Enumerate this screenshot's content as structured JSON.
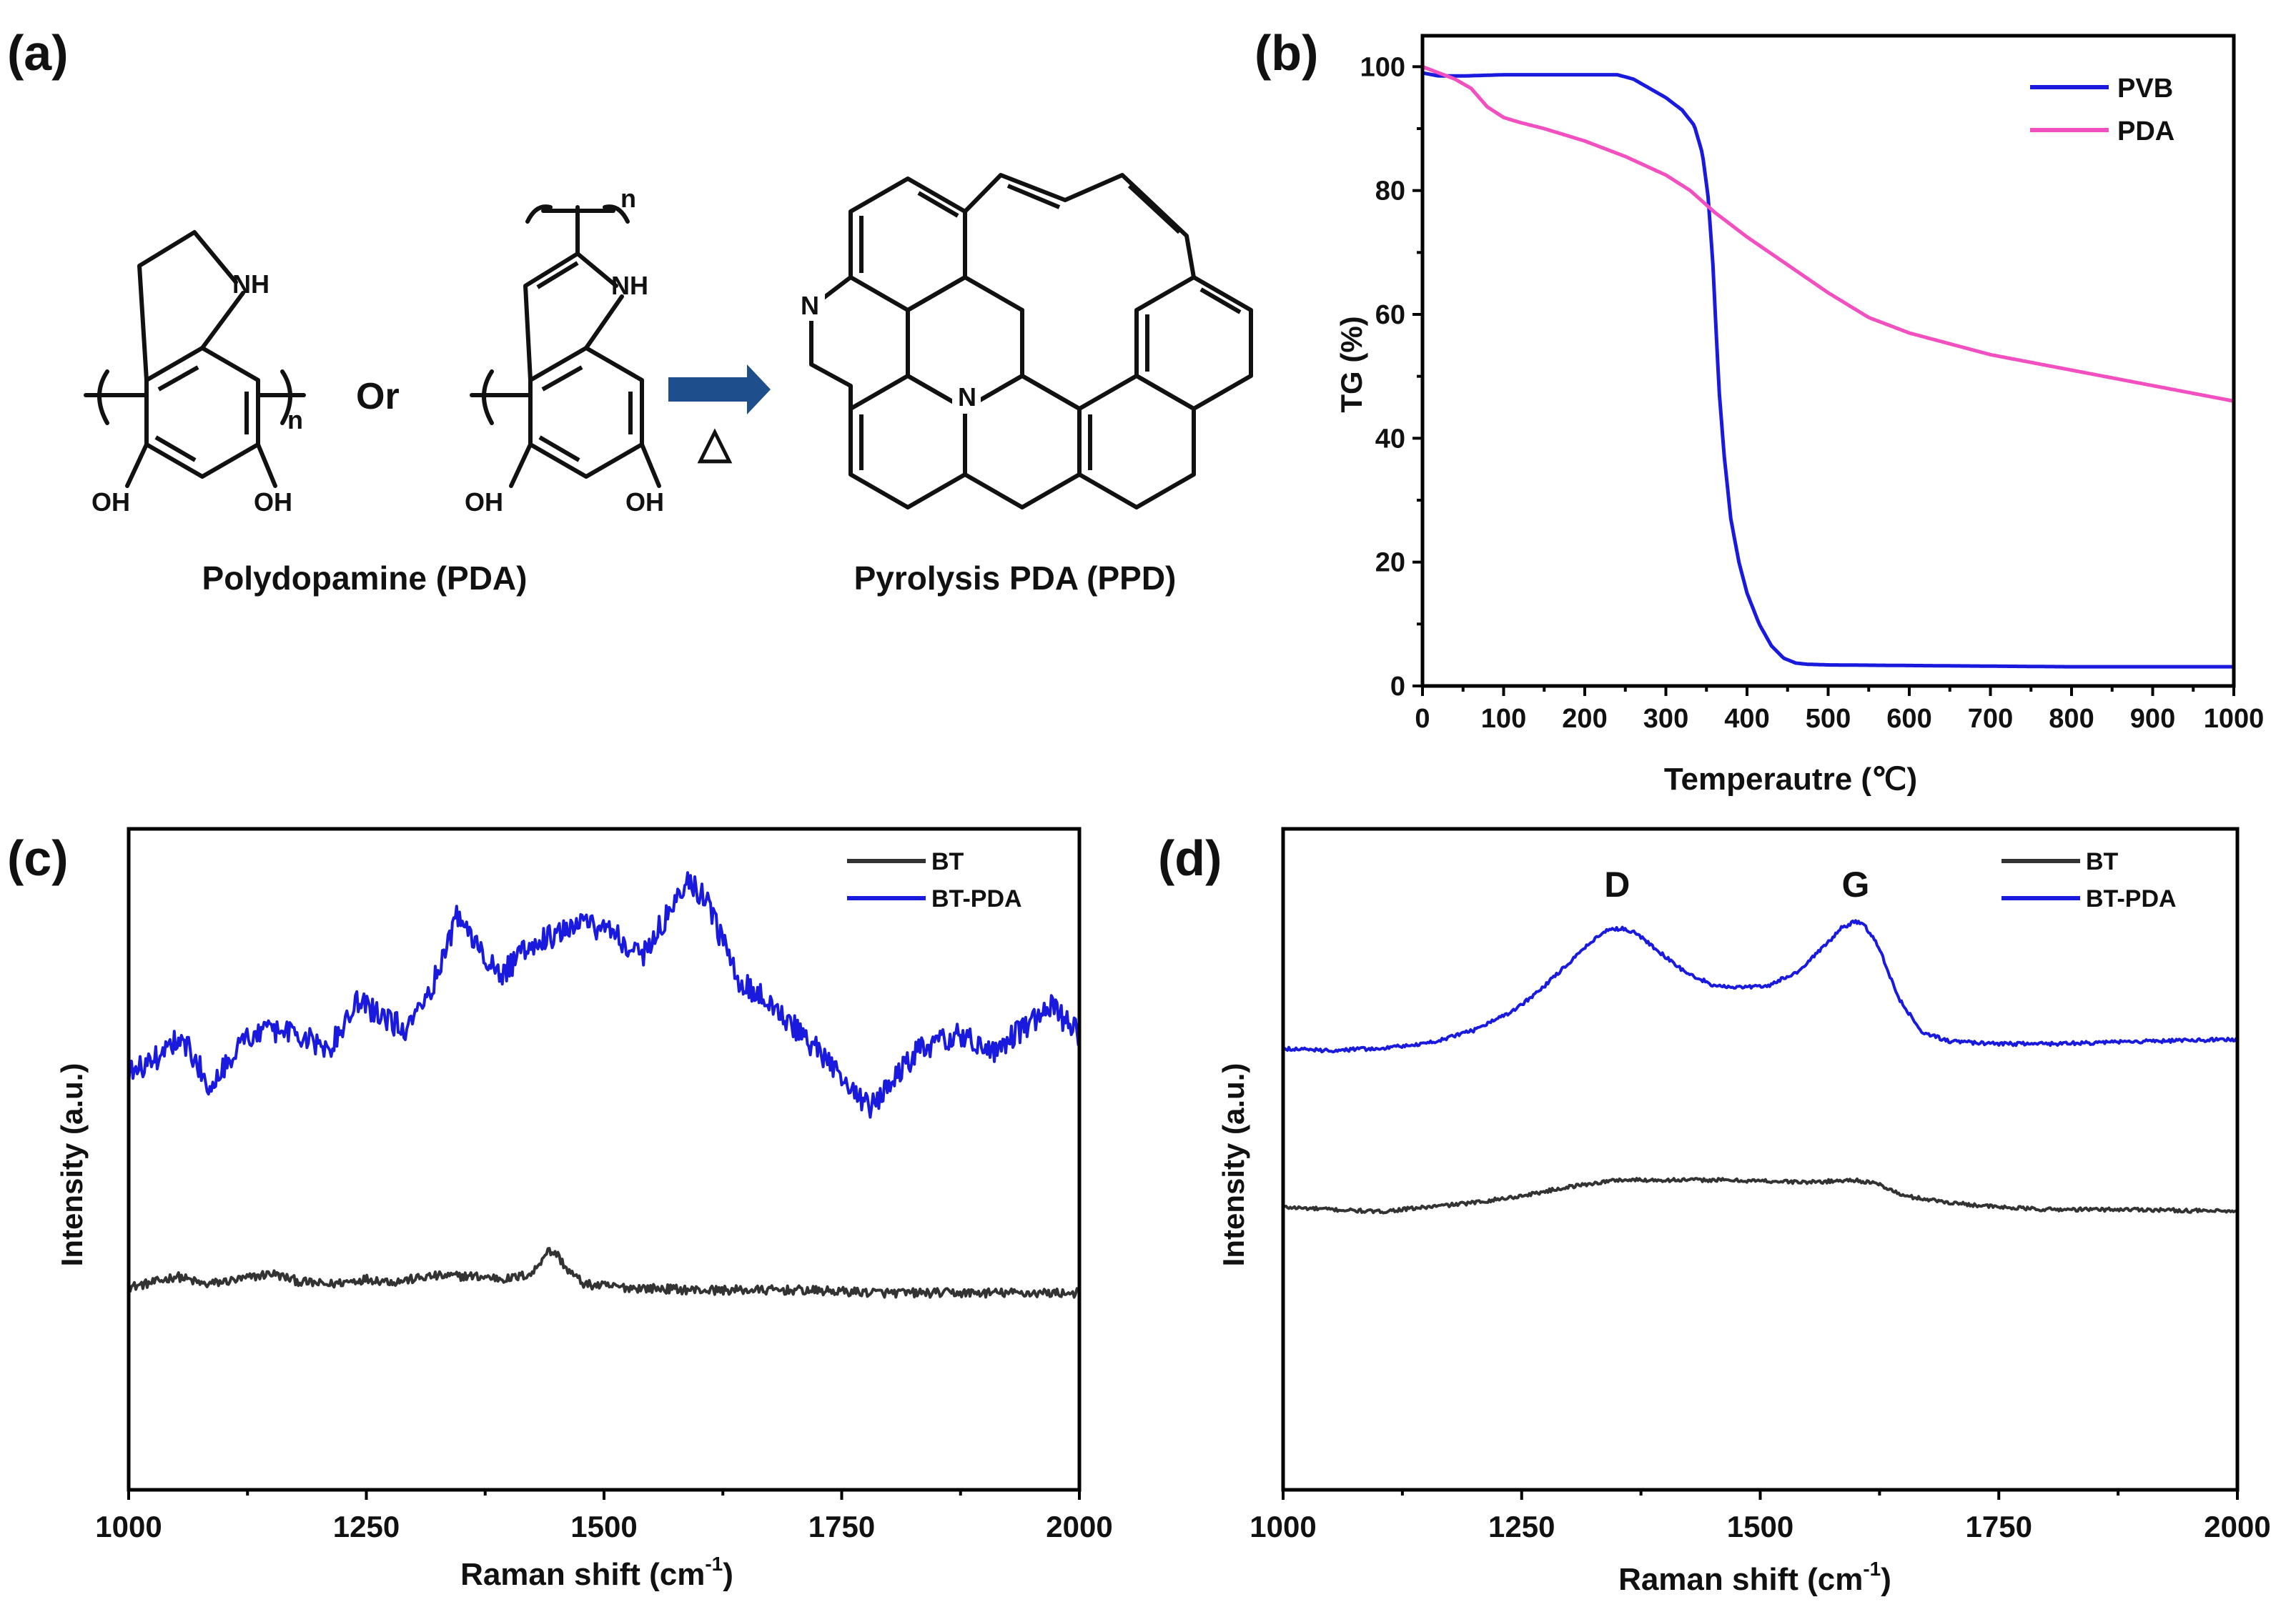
{
  "panel_labels": {
    "a": "(a)",
    "b": "(b)",
    "c": "(c)",
    "d": "(d)"
  },
  "scheme": {
    "pda_label": "Polydopamine (PDA)",
    "ppd_label": "Pyrolysis PDA (PPD)",
    "or_text": "Or",
    "heat_symbol": "△",
    "atoms": {
      "nh": "NH",
      "oh": "OH",
      "n": "N",
      "sub_n": "n"
    }
  },
  "chart_data": [
    {
      "id": "b",
      "type": "line",
      "xlabel": "Temperautre (℃)",
      "ylabel": "TG (%)",
      "xlim": [
        0,
        1000
      ],
      "ylim": [
        0,
        105
      ],
      "xticks": [
        "0",
        "100",
        "200",
        "300",
        "400",
        "500",
        "600",
        "700",
        "800",
        "900",
        "1000"
      ],
      "yticks": [
        "0",
        "20",
        "40",
        "60",
        "80",
        "100"
      ],
      "legend_position": "top-right",
      "series": [
        {
          "name": "PVB",
          "color": "#1a1adf",
          "x": [
            0,
            20,
            50,
            100,
            150,
            200,
            240,
            260,
            280,
            300,
            320,
            335,
            345,
            352,
            358,
            362,
            366,
            372,
            380,
            390,
            400,
            415,
            430,
            445,
            460,
            475,
            500,
            600,
            700,
            800,
            900,
            1000
          ],
          "y": [
            99,
            98.5,
            98.5,
            98.7,
            98.7,
            98.7,
            98.7,
            98,
            96.5,
            95,
            93,
            90.5,
            86,
            79,
            68,
            57,
            47,
            37,
            27,
            20,
            15,
            10,
            6.5,
            4.5,
            3.7,
            3.5,
            3.4,
            3.3,
            3.2,
            3.1,
            3.1,
            3.1
          ]
        },
        {
          "name": "PDA",
          "color": "#f24fc0",
          "x": [
            0,
            20,
            40,
            60,
            80,
            100,
            120,
            150,
            200,
            250,
            300,
            330,
            360,
            400,
            450,
            500,
            550,
            600,
            700,
            800,
            900,
            1000
          ],
          "y": [
            100,
            99,
            98,
            96.5,
            93.5,
            91.8,
            91,
            90,
            88,
            85.5,
            82.5,
            80,
            76.5,
            72.5,
            68,
            63.5,
            59.5,
            57,
            53.5,
            51,
            48.5,
            46
          ]
        }
      ]
    },
    {
      "id": "c",
      "type": "line",
      "xlabel": "Raman shift (cm",
      "xlabel_sup": "-1",
      "xlabel_end": ")",
      "ylabel": "Intensity (a.u.)",
      "xlim": [
        1000,
        2000
      ],
      "ylim": [
        0,
        1
      ],
      "xticks": [
        "1000",
        "1250",
        "1500",
        "1750",
        "2000"
      ],
      "legend_position": "top-right",
      "series": [
        {
          "name": "BT",
          "color": "#333333",
          "noise": 0.008,
          "x": [
            1000,
            1030,
            1050,
            1080,
            1120,
            1150,
            1180,
            1210,
            1250,
            1280,
            1320,
            1360,
            1400,
            1425,
            1440,
            1450,
            1462,
            1480,
            1520,
            1600,
            1700,
            1800,
            1900,
            2000
          ],
          "y": [
            0.24,
            0.25,
            0.26,
            0.245,
            0.255,
            0.265,
            0.25,
            0.245,
            0.255,
            0.25,
            0.26,
            0.26,
            0.255,
            0.265,
            0.305,
            0.3,
            0.27,
            0.245,
            0.24,
            0.235,
            0.235,
            0.23,
            0.23,
            0.23
          ]
        },
        {
          "name": "BT-PDA",
          "color": "#1a1adf",
          "noise": 0.022,
          "x": [
            1000,
            1030,
            1055,
            1085,
            1120,
            1150,
            1180,
            1210,
            1240,
            1260,
            1290,
            1320,
            1345,
            1365,
            1390,
            1420,
            1450,
            1480,
            1510,
            1540,
            1565,
            1590,
            1610,
            1640,
            1680,
            1720,
            1750,
            1780,
            1800,
            1830,
            1870,
            1910,
            1940,
            1970,
            2000
          ],
          "y": [
            0.62,
            0.65,
            0.69,
            0.6,
            0.68,
            0.7,
            0.69,
            0.66,
            0.75,
            0.73,
            0.7,
            0.78,
            0.9,
            0.86,
            0.79,
            0.85,
            0.87,
            0.89,
            0.87,
            0.83,
            0.9,
            0.97,
            0.92,
            0.79,
            0.74,
            0.67,
            0.61,
            0.56,
            0.6,
            0.66,
            0.69,
            0.66,
            0.7,
            0.74,
            0.69
          ]
        }
      ]
    },
    {
      "id": "d",
      "type": "line",
      "xlabel": "Raman shift (cm",
      "xlabel_sup": "-1",
      "xlabel_end": ")",
      "ylabel": "Intensity (a.u.)",
      "xlim": [
        1000,
        2000
      ],
      "ylim": [
        0,
        1
      ],
      "xticks": [
        "1000",
        "1250",
        "1500",
        "1750",
        "2000"
      ],
      "legend_position": "top-right",
      "annotations": [
        {
          "text": "D",
          "x": 1350
        },
        {
          "text": "G",
          "x": 1600
        }
      ],
      "series": [
        {
          "name": "BT",
          "color": "#333333",
          "noise": 0.004,
          "x": [
            1000,
            1050,
            1100,
            1150,
            1200,
            1250,
            1300,
            1350,
            1400,
            1450,
            1500,
            1550,
            1600,
            1625,
            1650,
            1700,
            1750,
            1800,
            1900,
            2000
          ],
          "y": [
            0.3,
            0.295,
            0.29,
            0.3,
            0.31,
            0.325,
            0.345,
            0.36,
            0.36,
            0.36,
            0.358,
            0.355,
            0.36,
            0.35,
            0.325,
            0.31,
            0.3,
            0.295,
            0.295,
            0.29
          ]
        },
        {
          "name": "BT-PDA",
          "color": "#1a1adf",
          "noise": 0.004,
          "x": [
            1000,
            1050,
            1100,
            1150,
            1200,
            1240,
            1270,
            1300,
            1320,
            1340,
            1355,
            1370,
            1390,
            1420,
            1450,
            1480,
            1510,
            1540,
            1565,
            1585,
            1600,
            1610,
            1625,
            1645,
            1670,
            1700,
            1750,
            1800,
            1900,
            2000
          ],
          "y": [
            0.65,
            0.645,
            0.65,
            0.66,
            0.69,
            0.73,
            0.78,
            0.84,
            0.88,
            0.91,
            0.915,
            0.905,
            0.87,
            0.82,
            0.79,
            0.785,
            0.79,
            0.82,
            0.87,
            0.915,
            0.93,
            0.92,
            0.87,
            0.76,
            0.685,
            0.665,
            0.66,
            0.66,
            0.665,
            0.67
          ]
        }
      ]
    }
  ]
}
